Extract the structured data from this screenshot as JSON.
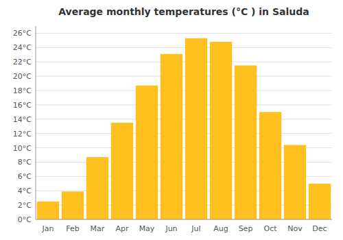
{
  "chart_data": {
    "type": "bar",
    "title": "Average monthly temperatures (°C ) in Saluda",
    "categories": [
      "Jan",
      "Feb",
      "Mar",
      "Apr",
      "May",
      "Jun",
      "Jul",
      "Aug",
      "Sep",
      "Oct",
      "Nov",
      "Dec"
    ],
    "values": [
      2.5,
      3.9,
      8.7,
      13.5,
      18.7,
      23.1,
      25.3,
      24.8,
      21.5,
      15.0,
      10.4,
      5.0
    ],
    "color": "#FFC020",
    "ylim": [
      0,
      27
    ],
    "yticks": [
      {
        "value": 0,
        "label": "0°C"
      },
      {
        "value": 2,
        "label": "2°C"
      },
      {
        "value": 4,
        "label": "4°C"
      },
      {
        "value": 6,
        "label": "6°C"
      },
      {
        "value": 8,
        "label": "8°C"
      },
      {
        "value": 10,
        "label": "10°C"
      },
      {
        "value": 12,
        "label": "12°C"
      },
      {
        "value": 14,
        "label": "14°C"
      },
      {
        "value": 16,
        "label": "16°C"
      },
      {
        "value": 18,
        "label": "18°C"
      },
      {
        "value": 20,
        "label": "20°C"
      },
      {
        "value": 22,
        "label": "22°C"
      },
      {
        "value": 24,
        "label": "24°C"
      },
      {
        "value": 26,
        "label": "26°C"
      }
    ],
    "grid": true
  }
}
